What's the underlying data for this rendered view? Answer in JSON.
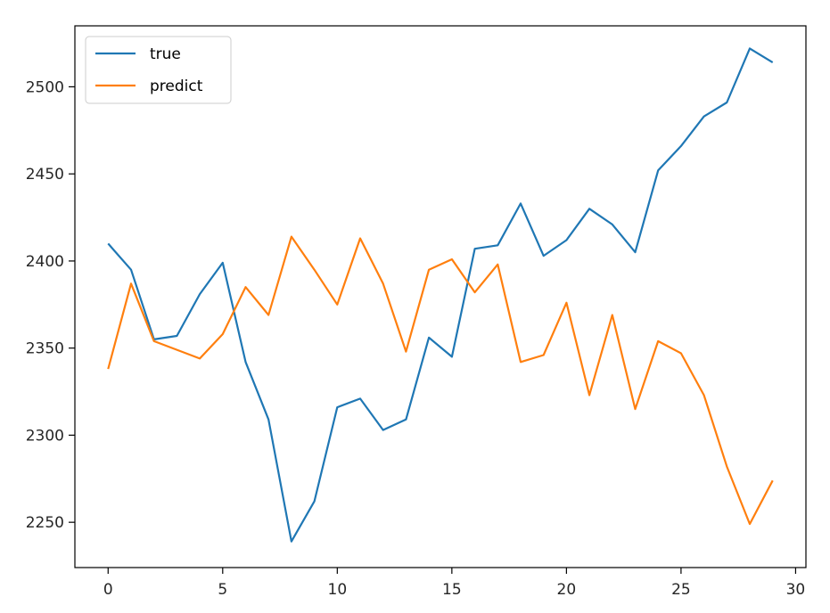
{
  "chart_data": {
    "type": "line",
    "title": "",
    "xlabel": "",
    "ylabel": "",
    "xlim": [
      -1.45,
      30.45
    ],
    "ylim": [
      2224,
      2535
    ],
    "xticks": [
      0,
      5,
      10,
      15,
      20,
      25,
      30
    ],
    "yticks": [
      2250,
      2300,
      2350,
      2400,
      2450,
      2500
    ],
    "grid": false,
    "legend": "upper-left",
    "x": [
      0,
      1,
      2,
      3,
      4,
      5,
      6,
      7,
      8,
      9,
      10,
      11,
      12,
      13,
      14,
      15,
      16,
      17,
      18,
      19,
      20,
      21,
      22,
      23,
      24,
      25,
      26,
      27,
      28,
      29
    ],
    "series": [
      {
        "name": "true",
        "color": "#1f77b4",
        "values": [
          2410,
          2395,
          2355,
          2357,
          2381,
          2399,
          2342,
          2309,
          2239,
          2262,
          2316,
          2321,
          2303,
          2309,
          2356,
          2345,
          2407,
          2409,
          2433,
          2403,
          2412,
          2430,
          2421,
          2405,
          2452,
          2466,
          2483,
          2491,
          2522,
          2514
        ]
      },
      {
        "name": "predict",
        "color": "#ff7f0e",
        "values": [
          2338,
          2387,
          2354,
          2349,
          2344,
          2358,
          2385,
          2369,
          2414,
          2395,
          2375,
          2413,
          2387,
          2348,
          2395,
          2401,
          2382,
          2398,
          2342,
          2346,
          2376,
          2323,
          2369,
          2315,
          2354,
          2347,
          2323,
          2282,
          2249,
          2274
        ]
      }
    ]
  }
}
